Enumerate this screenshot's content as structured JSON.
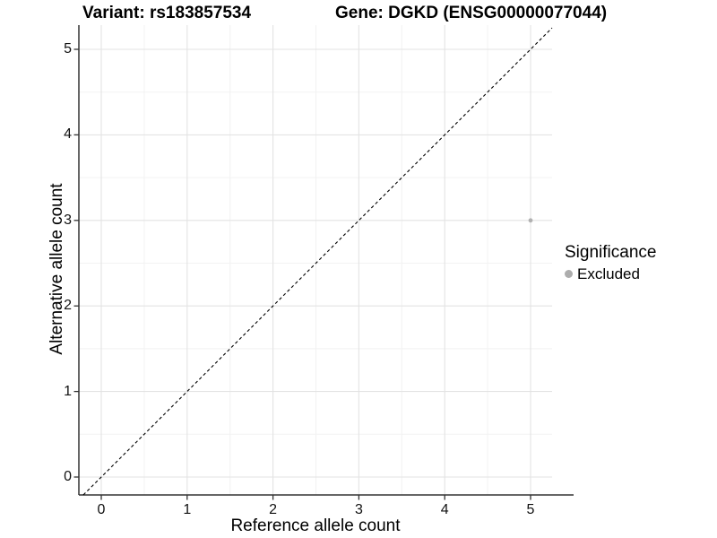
{
  "header": {
    "title_left": "Variant: rs183857534",
    "title_right": "Gene: DGKD (ENSG00000077044)"
  },
  "chart_data": {
    "type": "scatter",
    "title_left": "Variant: rs183857534",
    "title_right": "Gene: DGKD (ENSG00000077044)",
    "xlabel": "Reference allele count",
    "ylabel": "Alternative allele count",
    "xlim": [
      -0.25,
      5.25
    ],
    "ylim": [
      -0.21,
      5.27
    ],
    "x_ticks": [
      0,
      1,
      2,
      3,
      4,
      5
    ],
    "y_ticks": [
      0,
      1,
      2,
      3,
      4,
      5
    ],
    "grid": "major+minor",
    "reference_line": {
      "kind": "identity y=x",
      "linestyle": "dashed",
      "color": "#000000"
    },
    "series": [
      {
        "name": "Excluded",
        "color": "#b1b1b1",
        "points": [
          {
            "x": 5,
            "y": 3
          }
        ]
      }
    ],
    "legend": {
      "title": "Significance",
      "position": "right",
      "entries": [
        {
          "label": "Excluded",
          "color": "#adadad"
        }
      ]
    }
  },
  "colors": {
    "panel_background": "#ffffff",
    "grid_major": "#e3e3e3",
    "grid_minor": "#f2f2f2",
    "axis_line": "#333333",
    "tick_mark": "#333333",
    "text": "#000000"
  }
}
